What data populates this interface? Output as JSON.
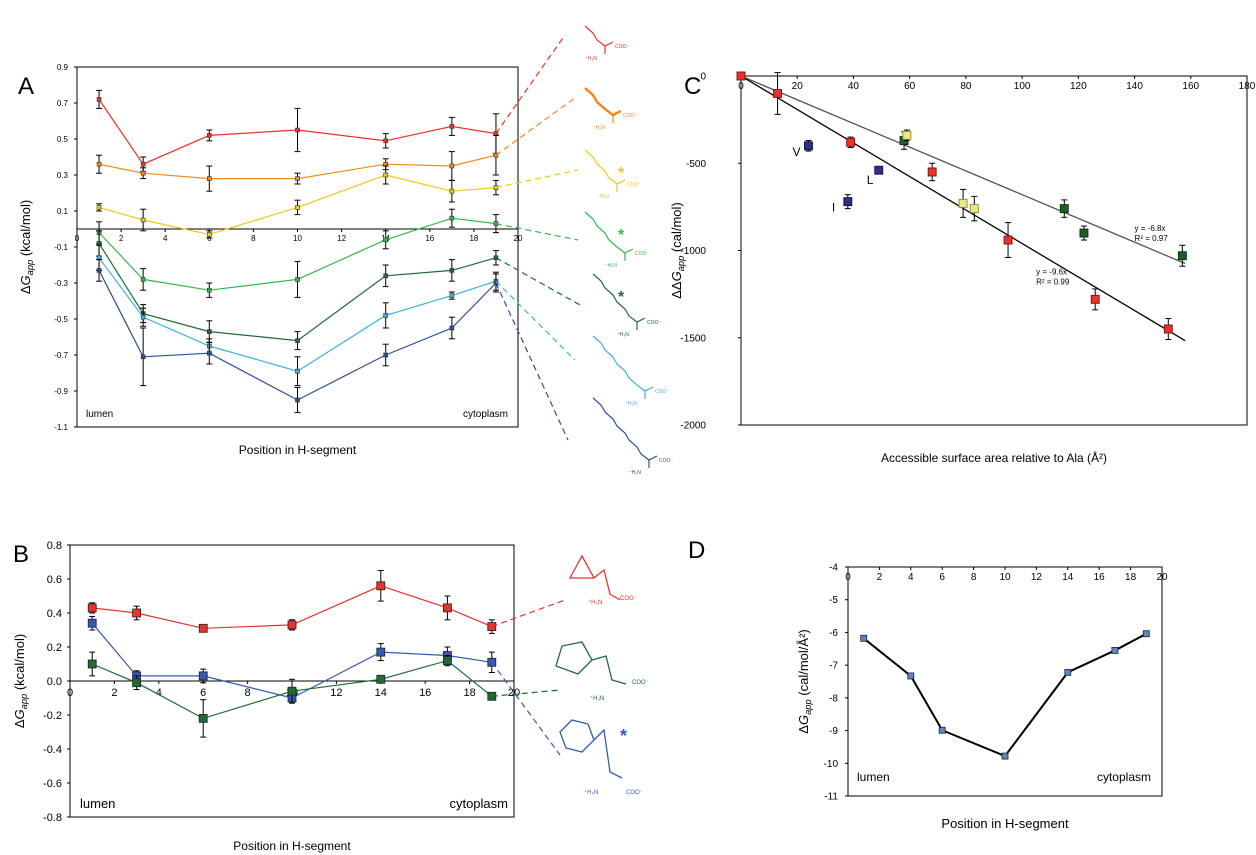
{
  "chart_data": [
    {
      "panel": "A",
      "type": "line",
      "xlabel": "Position in H-segment",
      "ylabel": "ΔG_app (kcal/mol)",
      "xlim": [
        0,
        20
      ],
      "ylim": [
        -1.1,
        0.9
      ],
      "xticks": [
        0,
        2,
        4,
        6,
        8,
        10,
        12,
        14,
        16,
        18,
        20
      ],
      "yticks": [
        -1.1,
        -0.9,
        -0.7,
        -0.5,
        -0.3,
        -0.1,
        0.1,
        0.3,
        0.5,
        0.7,
        0.9
      ],
      "ytick_labels": [
        "-1.1",
        "-0.9",
        "-0.7",
        "-0.5",
        "-0.3",
        "-0.1",
        "0.1",
        "0.3",
        "0.5",
        "0.7",
        "0.9"
      ],
      "x": [
        1,
        3,
        6,
        10,
        14,
        17,
        19
      ],
      "corner_labels": [
        "lumen",
        "cytoplasm"
      ],
      "series": [
        {
          "color": "#e8322a",
          "values": [
            0.72,
            0.36,
            0.52,
            0.55,
            0.49,
            0.57,
            0.53
          ],
          "err": [
            0.05,
            0.04,
            0.03,
            0.12,
            0.04,
            0.05,
            0.11
          ]
        },
        {
          "color": "#f08a1c",
          "values": [
            0.36,
            0.31,
            0.28,
            0.28,
            0.36,
            0.35,
            0.41
          ],
          "err": [
            0.05,
            0.03,
            0.07,
            0.03,
            0.03,
            0.08,
            0.11
          ]
        },
        {
          "color": "#f2c716",
          "values": [
            0.12,
            0.05,
            -0.03,
            0.12,
            0.3,
            0.21,
            0.23
          ],
          "err": [
            0.02,
            0.06,
            0.02,
            0.04,
            0.05,
            0.06,
            0.04
          ]
        },
        {
          "color": "#35b84a",
          "values": [
            -0.02,
            -0.28,
            -0.34,
            -0.28,
            -0.06,
            0.06,
            0.03
          ],
          "err": [
            0.06,
            0.06,
            0.04,
            0.1,
            0.05,
            0.05,
            0.05
          ]
        },
        {
          "color": "#1e6b34",
          "values": [
            -0.08,
            -0.47,
            -0.57,
            -0.62,
            -0.26,
            -0.23,
            -0.16
          ],
          "err": [
            0.07,
            0.05,
            0.06,
            0.05,
            0.06,
            0.06,
            0.04
          ]
        },
        {
          "color": "#3fb1e0",
          "values": [
            -0.16,
            -0.49,
            -0.65,
            -0.79,
            -0.48,
            -0.37,
            -0.29
          ],
          "err": [
            0.07,
            0.05,
            0.04,
            0.08,
            0.07,
            0.02,
            0.05
          ]
        },
        {
          "color": "#2c4c9c",
          "values": [
            -0.23,
            -0.71,
            -0.69,
            -0.95,
            -0.7,
            -0.55,
            -0.3
          ],
          "err": [
            0.06,
            0.16,
            0.06,
            0.07,
            0.06,
            0.06,
            0.05
          ]
        }
      ]
    },
    {
      "panel": "B",
      "type": "line",
      "xlabel": "Position in H-segment",
      "ylabel": "ΔG_app (kcal/mol)",
      "xlim": [
        0,
        20
      ],
      "ylim": [
        -0.8,
        0.8
      ],
      "xticks": [
        0,
        2,
        4,
        6,
        8,
        10,
        12,
        14,
        16,
        18,
        20
      ],
      "yticks": [
        -0.8,
        -0.6,
        -0.4,
        -0.2,
        0.0,
        0.2,
        0.4,
        0.6,
        0.8
      ],
      "ytick_labels": [
        "-0.8",
        "-0.6",
        "-0.4",
        "-0.2",
        "0.0",
        "0.2",
        "0.4",
        "0.6",
        "0.8"
      ],
      "x": [
        1,
        3,
        6,
        10,
        14,
        17,
        19
      ],
      "corner_labels": [
        "lumen",
        "cytoplasm"
      ],
      "series": [
        {
          "color": "#e8322a",
          "values": [
            0.43,
            0.4,
            0.31,
            0.33,
            0.56,
            0.43,
            0.32
          ],
          "err": [
            0.03,
            0.04,
            0.02,
            0.03,
            0.09,
            0.07,
            0.04
          ]
        },
        {
          "color": "#3559b5",
          "values": [
            0.34,
            0.03,
            0.03,
            -0.1,
            0.17,
            0.15,
            0.11
          ],
          "err": [
            0.04,
            0.03,
            0.04,
            0.03,
            0.05,
            0.05,
            0.06
          ]
        },
        {
          "color": "#1e6b34",
          "values": [
            0.1,
            -0.01,
            -0.22,
            -0.06,
            0.01,
            0.12,
            -0.09
          ],
          "err": [
            0.07,
            0.04,
            0.11,
            0.07,
            0.02,
            0.03,
            0.02
          ]
        }
      ]
    },
    {
      "panel": "C",
      "type": "scatter",
      "xlabel": "Accessible surface area relative to Ala (Å²)",
      "ylabel": "ΔΔG_app (cal/mol)",
      "xlim": [
        0,
        180
      ],
      "ylim": [
        -2000,
        0
      ],
      "xticks": [
        0,
        20,
        40,
        60,
        80,
        100,
        120,
        140,
        160,
        180
      ],
      "yticks": [
        0,
        -500,
        -1000,
        -1500,
        -2000
      ],
      "ytick_labels": [
        "0",
        "-500",
        "-1000",
        "-1500",
        "-2000"
      ],
      "series": [
        {
          "color": "#e8322a",
          "stroke": "#7a1010",
          "points": [
            [
              0,
              0
            ],
            [
              13,
              -100
            ],
            [
              39,
              -380
            ],
            [
              68,
              -550
            ],
            [
              95,
              -940
            ],
            [
              126,
              -1280
            ],
            [
              152,
              -1450
            ]
          ],
          "err": [
            0,
            120,
            30,
            50,
            100,
            60,
            60
          ]
        },
        {
          "color": "#1f5c26",
          "stroke": "#0d2e12",
          "points": [
            [
              58,
              -370
            ],
            [
              115,
              -760
            ],
            [
              122,
              -900
            ],
            [
              157,
              -1030
            ]
          ],
          "err": [
            50,
            50,
            40,
            60
          ]
        },
        {
          "color": "#ebe887",
          "stroke": "#8a8a30",
          "points": [
            [
              59,
              -340
            ],
            [
              79,
              -730
            ],
            [
              83,
              -760
            ]
          ],
          "err": [
            30,
            80,
            70
          ]
        },
        {
          "color": "#2b2f8a",
          "stroke": "#10124a",
          "points": [
            [
              24,
              -400
            ],
            [
              38,
              -720
            ],
            [
              49,
              -540
            ]
          ],
          "err": [
            30,
            40,
            20
          ]
        }
      ],
      "point_labels": [
        {
          "text": "V",
          "x": 24,
          "y": -400
        },
        {
          "text": "L",
          "x": 49,
          "y": -540
        },
        {
          "text": "I",
          "x": 38,
          "y": -720
        }
      ],
      "fits": [
        {
          "slope": -6.8,
          "equation": "y = -6.8x",
          "r2": "R² = 0.97",
          "color": "#555555"
        },
        {
          "slope": -9.6,
          "equation": "y = -9.6x",
          "r2": "R² = 0.99",
          "color": "#000000"
        }
      ]
    },
    {
      "panel": "D",
      "type": "line",
      "xlabel": "Position in H-segment",
      "ylabel": "ΔG_app (cal/mol/Å²)",
      "xlim": [
        0,
        20
      ],
      "ylim": [
        -11,
        -4
      ],
      "xticks": [
        0,
        2,
        4,
        6,
        8,
        10,
        12,
        14,
        16,
        18,
        20
      ],
      "yticks": [
        -4,
        -5,
        -6,
        -7,
        -8,
        -9,
        -10,
        -11
      ],
      "ytick_labels": [
        "-4",
        "-5",
        "-6",
        "-7",
        "-8",
        "-9",
        "-10",
        "-11"
      ],
      "x": [
        1,
        4,
        6,
        10,
        14,
        17,
        19
      ],
      "corner_labels": [
        "lumen",
        "cytoplasm"
      ],
      "series": [
        {
          "color": "#000000",
          "marker": "#5b86c8",
          "values": [
            -6.18,
            -7.33,
            -8.99,
            -9.78,
            -7.22,
            -6.55,
            -6.04
          ]
        }
      ]
    }
  ],
  "panel_letters": [
    "A",
    "B",
    "C",
    "D"
  ],
  "side_structures": {
    "A": [
      {
        "color": "#e8322a",
        "star": false
      },
      {
        "color": "#f08a1c",
        "star": false
      },
      {
        "color": "#f2c716",
        "star": true
      },
      {
        "color": "#35b84a",
        "star": true
      },
      {
        "color": "#1e6b34",
        "star": true
      },
      {
        "color": "#3fb1e0",
        "star": false
      },
      {
        "color": "#2c4c9c",
        "star": false
      }
    ],
    "B": [
      {
        "color": "#e8322a",
        "ring": "cyclopropyl",
        "star": false
      },
      {
        "color": "#1e6b34",
        "ring": "cyclopentyl",
        "star": false
      },
      {
        "color": "#3559b5",
        "ring": "cyclohexyl",
        "star": true
      }
    ],
    "amine_label": "⁺H₃N",
    "carboxylate_label": "COO⁻",
    "star_glyph": "*"
  }
}
